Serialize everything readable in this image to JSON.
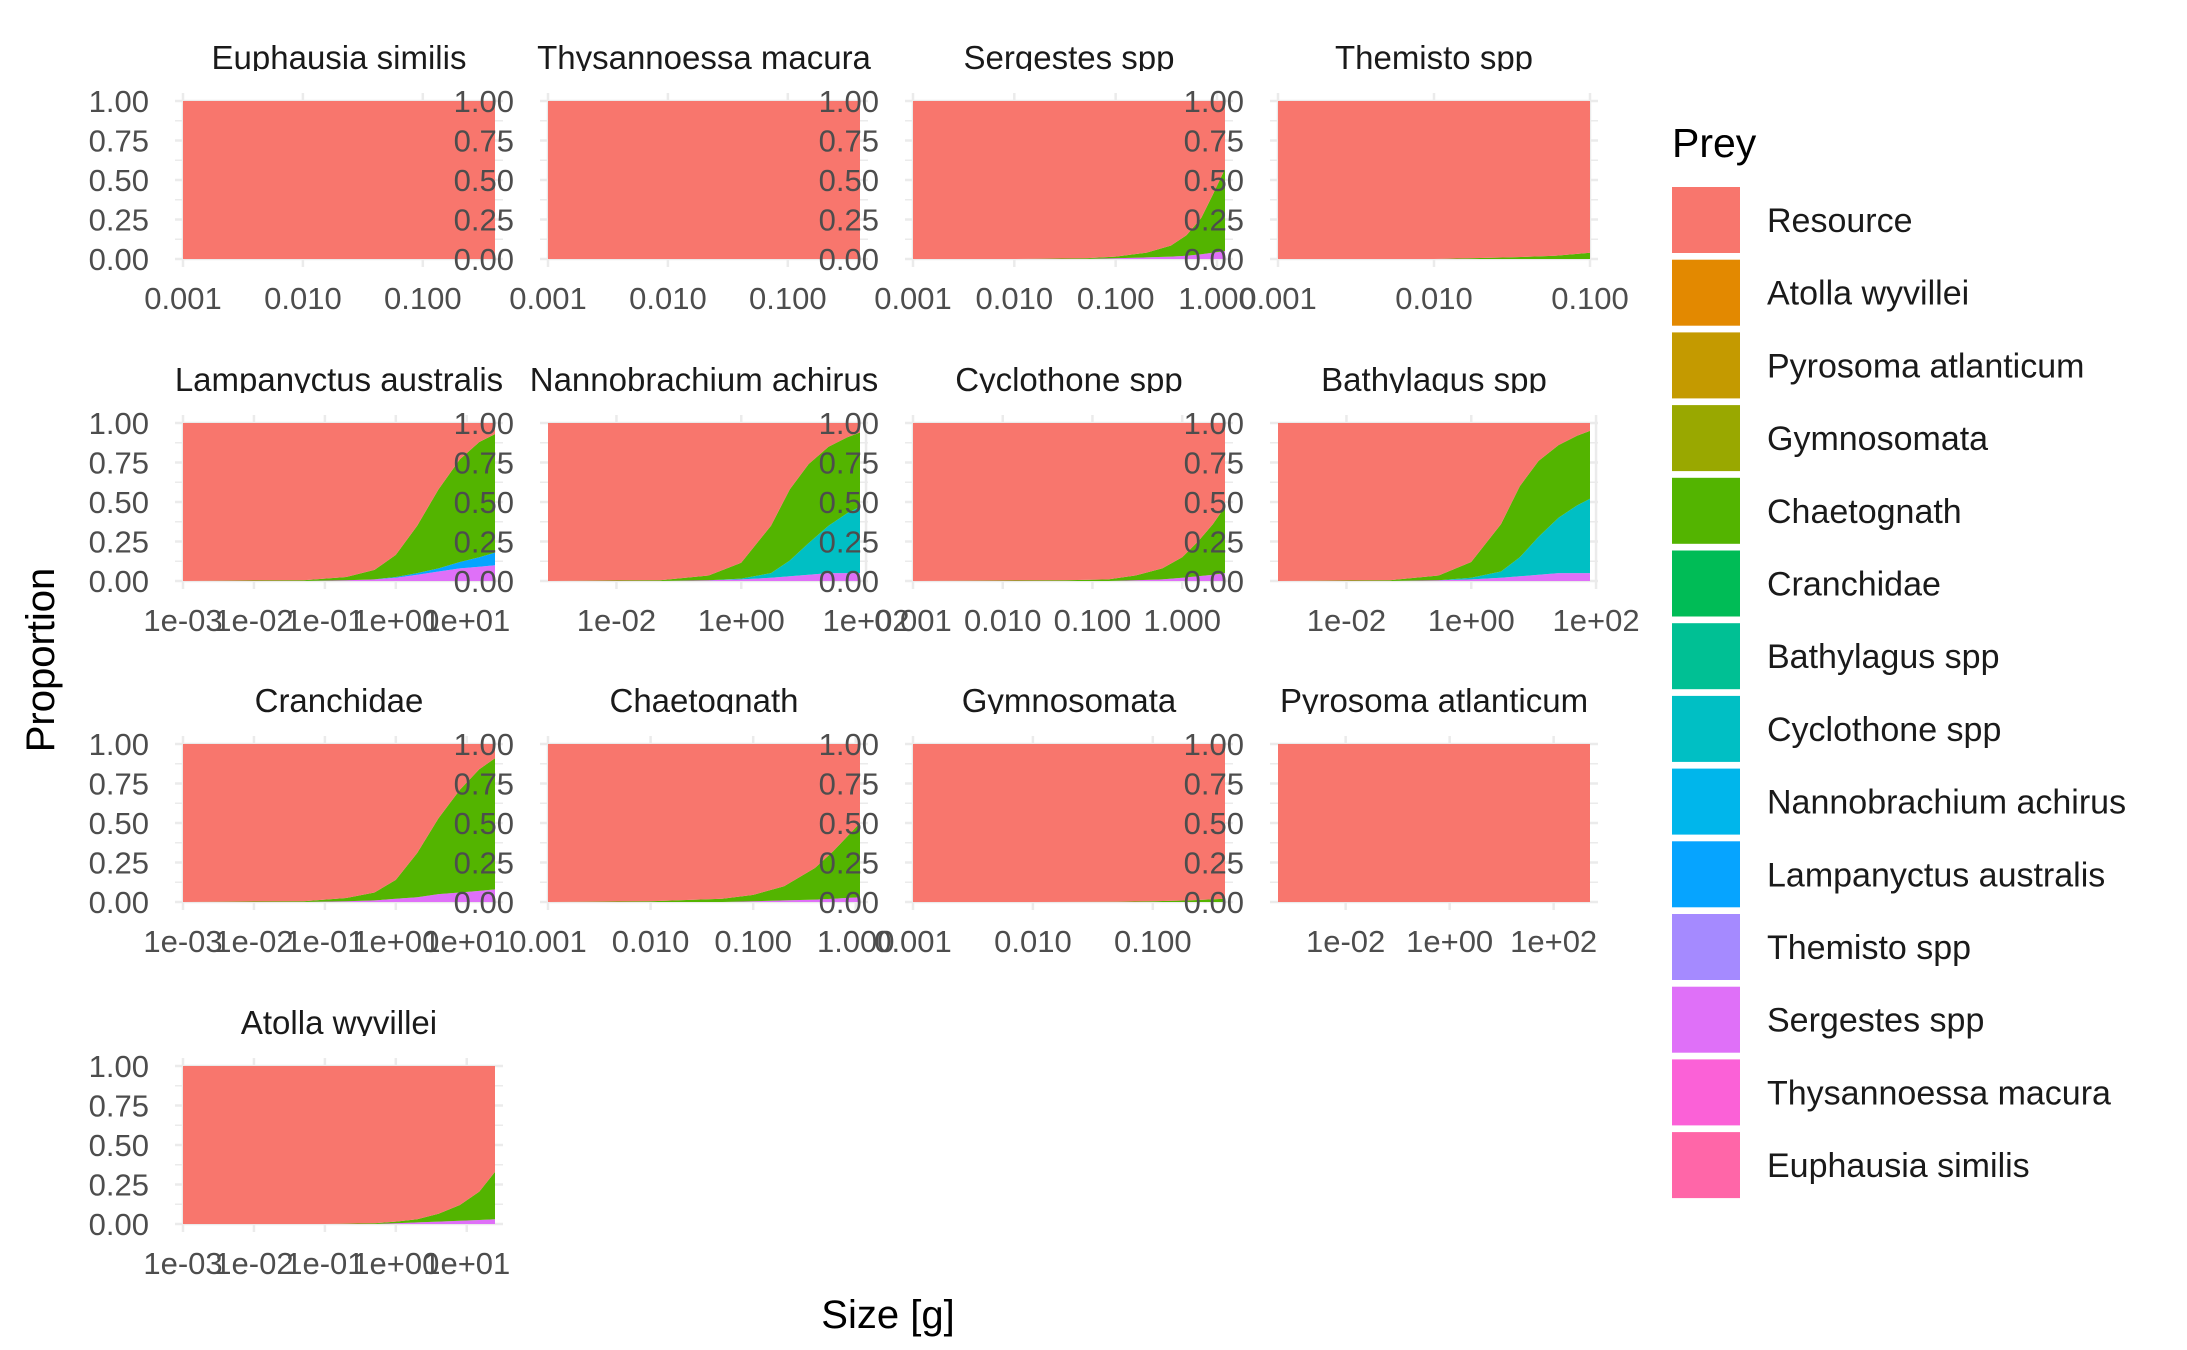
{
  "chart_data": {
    "type": "area",
    "subtype": "stacked-proportion-small-multiples",
    "xlabel": "Size [g]",
    "ylabel": "Proportion",
    "x_scale": "log10",
    "ylim": [
      0,
      1
    ],
    "y_ticks": [
      "0.00",
      "0.25",
      "0.50",
      "0.75",
      "1.00"
    ],
    "grid": "on",
    "legend": {
      "title": "Prey",
      "placement": "right",
      "entries": [
        {
          "name": "Resource",
          "color": "#F8766D"
        },
        {
          "name": "Atolla wyvillei",
          "color": "#E38900"
        },
        {
          "name": "Pyrosoma atlanticum",
          "color": "#C49A00"
        },
        {
          "name": "Gymnosomata",
          "color": "#99A800"
        },
        {
          "name": "Chaetognath",
          "color": "#53B400"
        },
        {
          "name": "Cranchidae",
          "color": "#00BC56"
        },
        {
          "name": "Bathylagus spp",
          "color": "#00C094"
        },
        {
          "name": "Cyclothone spp",
          "color": "#00BFC4"
        },
        {
          "name": "Nannobrachium achirus",
          "color": "#00B6EB"
        },
        {
          "name": "Lampanyctus australis",
          "color": "#06A4FF"
        },
        {
          "name": "Themisto spp",
          "color": "#A58AFF"
        },
        {
          "name": "Sergestes spp",
          "color": "#DF70F8"
        },
        {
          "name": "Thysannoessa macura",
          "color": "#FB61D7"
        },
        {
          "name": "Euphausia similis",
          "color": "#FF66A8"
        }
      ]
    },
    "panels": [
      {
        "title": "Euphausia similis",
        "xlim": [
          0.001,
          0.4
        ],
        "x_ticks": [
          {
            "v": 0.001,
            "label": "0.001"
          },
          {
            "v": 0.01,
            "label": "0.010"
          },
          {
            "v": 0.1,
            "label": "0.100"
          }
        ],
        "x": [
          0.001,
          0.003,
          0.01,
          0.03,
          0.1,
          0.4
        ],
        "series": [
          {
            "name": "Resource",
            "values": [
              1,
              1,
              1,
              1,
              1,
              1
            ]
          }
        ]
      },
      {
        "title": "Thysannoessa macura",
        "xlim": [
          0.001,
          0.4
        ],
        "x_ticks": [
          {
            "v": 0.001,
            "label": "0.001"
          },
          {
            "v": 0.01,
            "label": "0.010"
          },
          {
            "v": 0.1,
            "label": "0.100"
          }
        ],
        "x": [
          0.001,
          0.003,
          0.01,
          0.03,
          0.1,
          0.4
        ],
        "series": [
          {
            "name": "Resource",
            "values": [
              1,
              1,
              1,
              1,
              1,
              1
            ]
          }
        ]
      },
      {
        "title": "Sergestes spp",
        "xlim": [
          0.001,
          1.2
        ],
        "x_ticks": [
          {
            "v": 0.001,
            "label": "0.001"
          },
          {
            "v": 0.01,
            "label": "0.010"
          },
          {
            "v": 0.1,
            "label": "0.100"
          },
          {
            "v": 1,
            "label": "1.000"
          }
        ],
        "x": [
          0.001,
          0.01,
          0.05,
          0.1,
          0.2,
          0.35,
          0.5,
          0.7,
          0.9,
          1.2
        ],
        "series": [
          {
            "name": "Sergestes spp",
            "values": [
              0,
              0,
              0,
              0.005,
              0.01,
              0.015,
              0.02,
              0.03,
              0.04,
              0.05
            ]
          },
          {
            "name": "Chaetognath",
            "values": [
              0,
              0,
              0.005,
              0.01,
              0.03,
              0.07,
              0.13,
              0.23,
              0.36,
              0.52
            ]
          },
          {
            "name": "Resource",
            "values": [
              1,
              1,
              0.995,
              0.985,
              0.96,
              0.915,
              0.85,
              0.74,
              0.6,
              0.43
            ]
          }
        ]
      },
      {
        "title": "Themisto spp",
        "xlim": [
          0.001,
          0.1
        ],
        "x_ticks": [
          {
            "v": 0.001,
            "label": "0.001"
          },
          {
            "v": 0.01,
            "label": "0.010"
          },
          {
            "v": 0.1,
            "label": "0.100"
          }
        ],
        "x": [
          0.001,
          0.01,
          0.03,
          0.06,
          0.1
        ],
        "series": [
          {
            "name": "Chaetognath",
            "values": [
              0,
              0,
              0.01,
              0.02,
              0.04
            ]
          },
          {
            "name": "Resource",
            "values": [
              1,
              1,
              0.99,
              0.98,
              0.96
            ]
          }
        ]
      },
      {
        "title": "Lampanyctus australis",
        "xlim": [
          0.001,
          25
        ],
        "x_ticks": [
          {
            "v": 0.001,
            "label": "1e-03"
          },
          {
            "v": 0.01,
            "label": "1e-02"
          },
          {
            "v": 0.1,
            "label": "1e-01"
          },
          {
            "v": 1,
            "label": "1e+00"
          },
          {
            "v": 10,
            "label": "1e+01"
          }
        ],
        "x": [
          0.001,
          0.05,
          0.2,
          0.5,
          1,
          2,
          4,
          8,
          15,
          25
        ],
        "series": [
          {
            "name": "Sergestes spp",
            "values": [
              0,
              0,
              0.005,
              0.01,
              0.02,
              0.04,
              0.06,
              0.08,
              0.09,
              0.1
            ]
          },
          {
            "name": "Lampanyctus australis",
            "values": [
              0,
              0,
              0,
              0,
              0.005,
              0.01,
              0.02,
              0.04,
              0.06,
              0.08
            ]
          },
          {
            "name": "Chaetognath",
            "values": [
              0,
              0.005,
              0.02,
              0.06,
              0.14,
              0.3,
              0.5,
              0.65,
              0.73,
              0.75
            ]
          },
          {
            "name": "Resource",
            "values": [
              1,
              0.995,
              0.975,
              0.93,
              0.835,
              0.65,
              0.42,
              0.23,
              0.12,
              0.07
            ]
          }
        ]
      },
      {
        "title": "Nannobrachium achirus",
        "xlim": [
          0.0008,
          80
        ],
        "x_ticks": [
          {
            "v": 0.01,
            "label": "1e-02"
          },
          {
            "v": 1,
            "label": "1e+00"
          },
          {
            "v": 100,
            "label": "1e+02"
          }
        ],
        "x": [
          0.0008,
          0.05,
          0.3,
          1,
          3,
          6,
          12,
          25,
          50,
          80
        ],
        "series": [
          {
            "name": "Sergestes spp",
            "values": [
              0,
              0,
              0.005,
              0.01,
              0.02,
              0.03,
              0.04,
              0.05,
              0.05,
              0.05
            ]
          },
          {
            "name": "Cyclothone spp",
            "values": [
              0,
              0,
              0,
              0.005,
              0.03,
              0.1,
              0.2,
              0.3,
              0.38,
              0.42
            ]
          },
          {
            "name": "Chaetognath",
            "values": [
              0,
              0.005,
              0.03,
              0.1,
              0.3,
              0.45,
              0.5,
              0.5,
              0.48,
              0.47
            ]
          },
          {
            "name": "Resource",
            "values": [
              1,
              0.995,
              0.965,
              0.885,
              0.65,
              0.42,
              0.26,
              0.15,
              0.09,
              0.06
            ]
          }
        ]
      },
      {
        "title": "Cyclothone spp",
        "xlim": [
          0.001,
          3
        ],
        "x_ticks": [
          {
            "v": 0.001,
            "label": "0.001"
          },
          {
            "v": 0.01,
            "label": "0.010"
          },
          {
            "v": 0.1,
            "label": "0.100"
          },
          {
            "v": 1,
            "label": "1.000"
          }
        ],
        "x": [
          0.001,
          0.05,
          0.15,
          0.3,
          0.6,
          1,
          1.5,
          2.2,
          3
        ],
        "series": [
          {
            "name": "Sergestes spp",
            "values": [
              0,
              0,
              0,
              0.005,
              0.01,
              0.02,
              0.03,
              0.04,
              0.05
            ]
          },
          {
            "name": "Chaetognath",
            "values": [
              0,
              0.005,
              0.01,
              0.03,
              0.07,
              0.13,
              0.22,
              0.32,
              0.42
            ]
          },
          {
            "name": "Resource",
            "values": [
              1,
              0.995,
              0.99,
              0.965,
              0.92,
              0.85,
              0.75,
              0.64,
              0.53
            ]
          }
        ]
      },
      {
        "title": "Bathylagus spp",
        "xlim": [
          0.0008,
          80
        ],
        "x_ticks": [
          {
            "v": 0.01,
            "label": "1e-02"
          },
          {
            "v": 1,
            "label": "1e+00"
          },
          {
            "v": 100,
            "label": "1e+02"
          }
        ],
        "x": [
          0.0008,
          0.05,
          0.3,
          1,
          3,
          6,
          12,
          25,
          50,
          80
        ],
        "series": [
          {
            "name": "Sergestes spp",
            "values": [
              0,
              0,
              0.005,
              0.01,
              0.02,
              0.03,
              0.04,
              0.05,
              0.05,
              0.05
            ]
          },
          {
            "name": "Cyclothone spp",
            "values": [
              0,
              0,
              0,
              0.01,
              0.04,
              0.12,
              0.24,
              0.35,
              0.43,
              0.47
            ]
          },
          {
            "name": "Chaetognath",
            "values": [
              0,
              0.005,
              0.03,
              0.1,
              0.3,
              0.45,
              0.48,
              0.46,
              0.44,
              0.43
            ]
          },
          {
            "name": "Resource",
            "values": [
              1,
              0.995,
              0.965,
              0.88,
              0.64,
              0.4,
              0.24,
              0.14,
              0.08,
              0.05
            ]
          }
        ]
      },
      {
        "title": "Cranchidae",
        "xlim": [
          0.001,
          25
        ],
        "x_ticks": [
          {
            "v": 0.001,
            "label": "1e-03"
          },
          {
            "v": 0.01,
            "label": "1e-02"
          },
          {
            "v": 0.1,
            "label": "1e-01"
          },
          {
            "v": 1,
            "label": "1e+00"
          },
          {
            "v": 10,
            "label": "1e+01"
          }
        ],
        "x": [
          0.001,
          0.05,
          0.2,
          0.5,
          1,
          2,
          4,
          8,
          15,
          25
        ],
        "series": [
          {
            "name": "Sergestes spp",
            "values": [
              0,
              0,
              0.005,
              0.01,
              0.02,
              0.03,
              0.05,
              0.06,
              0.07,
              0.08
            ]
          },
          {
            "name": "Chaetognath",
            "values": [
              0,
              0.005,
              0.02,
              0.05,
              0.12,
              0.28,
              0.48,
              0.65,
              0.77,
              0.83
            ]
          },
          {
            "name": "Resource",
            "values": [
              1,
              0.995,
              0.975,
              0.94,
              0.86,
              0.69,
              0.47,
              0.29,
              0.16,
              0.09
            ]
          }
        ]
      },
      {
        "title": "Chaetognath",
        "xlim": [
          0.001,
          1.1
        ],
        "x_ticks": [
          {
            "v": 0.001,
            "label": "0.001"
          },
          {
            "v": 0.01,
            "label": "0.010"
          },
          {
            "v": 0.1,
            "label": "0.100"
          },
          {
            "v": 1,
            "label": "1.000"
          }
        ],
        "x": [
          0.001,
          0.01,
          0.05,
          0.1,
          0.2,
          0.4,
          0.6,
          0.8,
          1.1
        ],
        "series": [
          {
            "name": "Sergestes spp",
            "values": [
              0,
              0,
              0,
              0.005,
              0.01,
              0.015,
              0.02,
              0.025,
              0.03
            ]
          },
          {
            "name": "Chaetognath",
            "values": [
              0,
              0.005,
              0.02,
              0.04,
              0.09,
              0.2,
              0.3,
              0.38,
              0.47
            ]
          },
          {
            "name": "Resource",
            "values": [
              1,
              0.995,
              0.98,
              0.955,
              0.9,
              0.785,
              0.68,
              0.595,
              0.5
            ]
          }
        ]
      },
      {
        "title": "Gymnosomata",
        "xlim": [
          0.001,
          0.4
        ],
        "x_ticks": [
          {
            "v": 0.001,
            "label": "0.001"
          },
          {
            "v": 0.01,
            "label": "0.010"
          },
          {
            "v": 0.1,
            "label": "0.100"
          }
        ],
        "x": [
          0.001,
          0.01,
          0.05,
          0.1,
          0.2,
          0.4
        ],
        "series": [
          {
            "name": "Chaetognath",
            "values": [
              0,
              0,
              0.002,
              0.005,
              0.01,
              0.02
            ]
          },
          {
            "name": "Resource",
            "values": [
              1,
              1,
              0.998,
              0.995,
              0.99,
              0.98
            ]
          }
        ]
      },
      {
        "title": "Pyrosoma atlanticum",
        "xlim": [
          0.0005,
          500
        ],
        "x_ticks": [
          {
            "v": 0.01,
            "label": "1e-02"
          },
          {
            "v": 1,
            "label": "1e+00"
          },
          {
            "v": 100,
            "label": "1e+02"
          }
        ],
        "x": [
          0.0005,
          0.1,
          10,
          500
        ],
        "series": [
          {
            "name": "Resource",
            "values": [
              1,
              1,
              1,
              1
            ]
          }
        ]
      },
      {
        "title": "Atolla wyvillei",
        "xlim": [
          0.001,
          25
        ],
        "x_ticks": [
          {
            "v": 0.001,
            "label": "1e-03"
          },
          {
            "v": 0.01,
            "label": "1e-02"
          },
          {
            "v": 0.1,
            "label": "1e-01"
          },
          {
            "v": 1,
            "label": "1e+00"
          },
          {
            "v": 10,
            "label": "1e+01"
          }
        ],
        "x": [
          0.001,
          0.1,
          0.5,
          1,
          2,
          4,
          8,
          15,
          25
        ],
        "series": [
          {
            "name": "Sergestes spp",
            "values": [
              0,
              0,
              0,
              0.005,
              0.01,
              0.015,
              0.02,
              0.025,
              0.03
            ]
          },
          {
            "name": "Chaetognath",
            "values": [
              0,
              0,
              0.005,
              0.01,
              0.02,
              0.05,
              0.1,
              0.18,
              0.3
            ]
          },
          {
            "name": "Resource",
            "values": [
              1,
              1,
              0.995,
              0.985,
              0.97,
              0.935,
              0.88,
              0.795,
              0.67
            ]
          }
        ]
      }
    ]
  }
}
